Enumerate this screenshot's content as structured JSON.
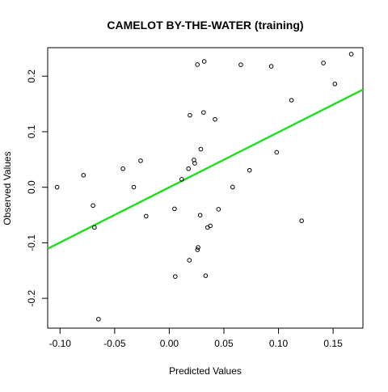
{
  "chart_data": {
    "type": "scatter",
    "title": "CAMELOT BY-THE-WATER (training)",
    "xlabel": "Predicted Values",
    "ylabel": "Observed Values",
    "xlim": [
      -0.1113,
      0.1773
    ],
    "ylim": [
      -0.2537,
      0.2513
    ],
    "x_ticks": [
      -0.1,
      -0.05,
      0.0,
      0.05,
      0.1,
      0.15
    ],
    "x_tick_labels": [
      "-0.10",
      "-0.05",
      "0.00",
      "0.05",
      "0.10",
      "0.15"
    ],
    "y_ticks": [
      -0.2,
      -0.1,
      0.0,
      0.1,
      0.2
    ],
    "y_tick_labels": [
      "-0.2",
      "-0.1",
      "0.0",
      "0.1",
      "0.2"
    ],
    "grid": false,
    "points": [
      {
        "x": -0.1027,
        "y": 0.0001
      },
      {
        "x": -0.0785,
        "y": 0.0217
      },
      {
        "x": -0.0698,
        "y": -0.033
      },
      {
        "x": -0.0685,
        "y": -0.0723
      },
      {
        "x": -0.0648,
        "y": -0.2375
      },
      {
        "x": -0.0424,
        "y": 0.0334
      },
      {
        "x": -0.0325,
        "y": 0.0002
      },
      {
        "x": -0.0262,
        "y": 0.0477
      },
      {
        "x": -0.0212,
        "y": -0.052
      },
      {
        "x": 0.0048,
        "y": -0.0389
      },
      {
        "x": 0.0055,
        "y": -0.1608
      },
      {
        "x": 0.0114,
        "y": 0.0143
      },
      {
        "x": 0.0176,
        "y": 0.0334
      },
      {
        "x": 0.0184,
        "y": -0.1314
      },
      {
        "x": 0.0189,
        "y": 0.1297
      },
      {
        "x": 0.0226,
        "y": 0.0491
      },
      {
        "x": 0.0233,
        "y": 0.0432
      },
      {
        "x": 0.0258,
        "y": 0.2208
      },
      {
        "x": 0.0258,
        "y": -0.1126
      },
      {
        "x": 0.0264,
        "y": -0.1083
      },
      {
        "x": 0.0283,
        "y": -0.0503
      },
      {
        "x": 0.0289,
        "y": 0.0686
      },
      {
        "x": 0.0314,
        "y": 0.1347
      },
      {
        "x": 0.032,
        "y": 0.2266
      },
      {
        "x": 0.0333,
        "y": -0.1593
      },
      {
        "x": 0.0351,
        "y": -0.0724
      },
      {
        "x": 0.0376,
        "y": -0.0695
      },
      {
        "x": 0.0419,
        "y": 0.1223
      },
      {
        "x": 0.0451,
        "y": -0.0397
      },
      {
        "x": 0.058,
        "y": 0.0003
      },
      {
        "x": 0.0655,
        "y": 0.2206
      },
      {
        "x": 0.0735,
        "y": 0.0306
      },
      {
        "x": 0.0934,
        "y": 0.2178
      },
      {
        "x": 0.0983,
        "y": 0.0629
      },
      {
        "x": 0.1119,
        "y": 0.1567
      },
      {
        "x": 0.1212,
        "y": -0.0604
      },
      {
        "x": 0.1411,
        "y": 0.2237
      },
      {
        "x": 0.1516,
        "y": 0.186
      },
      {
        "x": 0.1666,
        "y": 0.2397
      }
    ],
    "regression_line": {
      "color": "#22DD22",
      "points": [
        {
          "x": -0.1113,
          "y": -0.1107
        },
        {
          "x": 0.1773,
          "y": 0.1759
        }
      ]
    },
    "colors": {
      "points": "#000000",
      "axes": "#000000",
      "regression_line": "#22DD22"
    }
  }
}
